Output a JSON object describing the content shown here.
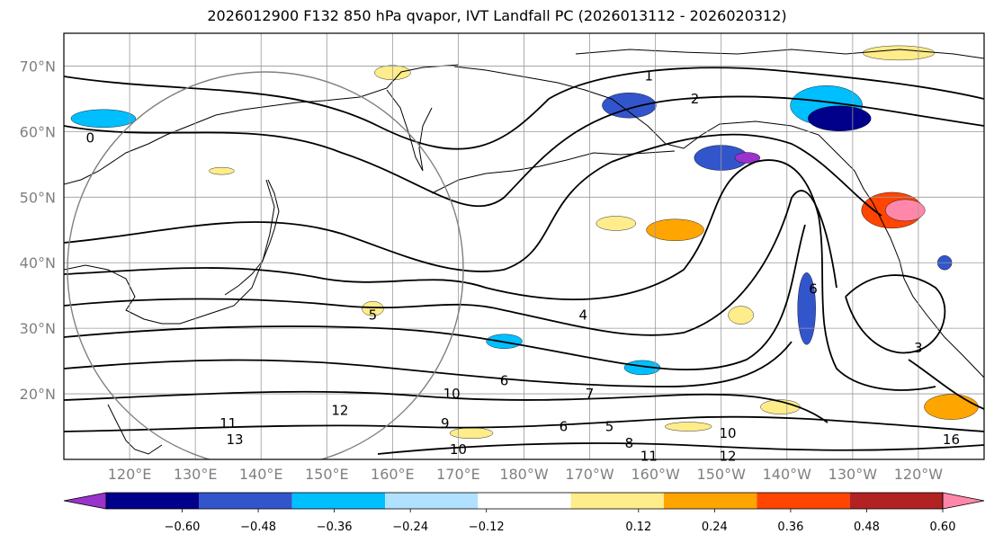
{
  "title": "2026012900 F132 850 hPa qvapor, IVT Landfall PC (2026013112 - 2026020312)",
  "map": {
    "lon_range": [
      110,
      250
    ],
    "lat_range": [
      10,
      75
    ],
    "lat_ticks": [
      {
        "value": 20,
        "label": "20°N"
      },
      {
        "value": 30,
        "label": "30°N"
      },
      {
        "value": 40,
        "label": "40°N"
      },
      {
        "value": 50,
        "label": "50°N"
      },
      {
        "value": 60,
        "label": "60°N"
      },
      {
        "value": 70,
        "label": "70°N"
      }
    ],
    "lon_ticks": [
      {
        "value": 120,
        "label": "120°E"
      },
      {
        "value": 130,
        "label": "130°E"
      },
      {
        "value": 140,
        "label": "140°E"
      },
      {
        "value": 150,
        "label": "150°E"
      },
      {
        "value": 160,
        "label": "160°E"
      },
      {
        "value": 170,
        "label": "170°E"
      },
      {
        "value": 180,
        "label": "180°W"
      },
      {
        "value": 190,
        "label": "170°W"
      },
      {
        "value": 200,
        "label": "160°W"
      },
      {
        "value": 210,
        "label": "150°W"
      },
      {
        "value": 220,
        "label": "140°W"
      },
      {
        "value": 230,
        "label": "130°W"
      },
      {
        "value": 240,
        "label": "120°W"
      }
    ],
    "contour_labels": [
      {
        "text": "1",
        "lon": 199,
        "lat": 68.5
      },
      {
        "text": "2",
        "lon": 206,
        "lat": 65
      },
      {
        "text": "0",
        "lon": 114,
        "lat": 59
      },
      {
        "text": "5",
        "lon": 157,
        "lat": 32
      },
      {
        "text": "4",
        "lon": 189,
        "lat": 32
      },
      {
        "text": "6",
        "lon": 224,
        "lat": 36
      },
      {
        "text": "3",
        "lon": 240,
        "lat": 27
      },
      {
        "text": "6",
        "lon": 177,
        "lat": 22
      },
      {
        "text": "10",
        "lon": 169,
        "lat": 20
      },
      {
        "text": "7",
        "lon": 190,
        "lat": 20
      },
      {
        "text": "9",
        "lon": 168,
        "lat": 15.5
      },
      {
        "text": "6",
        "lon": 186,
        "lat": 15
      },
      {
        "text": "5",
        "lon": 193,
        "lat": 15
      },
      {
        "text": "8",
        "lon": 196,
        "lat": 12.5
      },
      {
        "text": "10",
        "lon": 170,
        "lat": 11.5
      },
      {
        "text": "11",
        "lon": 135,
        "lat": 15.5
      },
      {
        "text": "12",
        "lon": 152,
        "lat": 17.5
      },
      {
        "text": "13",
        "lon": 136,
        "lat": 13
      },
      {
        "text": "10",
        "lon": 211,
        "lat": 14
      },
      {
        "text": "12",
        "lon": 211,
        "lat": 10.5
      },
      {
        "text": "11",
        "lon": 199,
        "lat": 10.5
      },
      {
        "text": "16",
        "lon": 245,
        "lat": 13
      }
    ],
    "shading": [
      {
        "type": "neg",
        "level": 3,
        "lon": 196,
        "lat": 64,
        "rx": 30,
        "ry": 14
      },
      {
        "type": "neg",
        "level": 2,
        "lon": 226,
        "lat": 64,
        "rx": 40,
        "ry": 22
      },
      {
        "type": "neg",
        "level": 4,
        "lon": 228,
        "lat": 62,
        "rx": 35,
        "ry": 14
      },
      {
        "type": "neg",
        "level": 3,
        "lon": 210,
        "lat": 56,
        "rx": 30,
        "ry": 14
      },
      {
        "type": "neg",
        "level": 5,
        "lon": 214,
        "lat": 56,
        "rx": 14,
        "ry": 6
      },
      {
        "type": "neg",
        "level": 2,
        "lon": 116,
        "lat": 62,
        "rx": 36,
        "ry": 10
      },
      {
        "type": "neg",
        "level": 3,
        "lon": 223,
        "lat": 33,
        "rx": 10,
        "ry": 40
      },
      {
        "type": "neg",
        "level": 3,
        "lon": 244,
        "lat": 40,
        "rx": 8,
        "ry": 8
      },
      {
        "type": "neg",
        "level": 2,
        "lon": 177,
        "lat": 28,
        "rx": 20,
        "ry": 8
      },
      {
        "type": "neg",
        "level": 2,
        "lon": 198,
        "lat": 24,
        "rx": 20,
        "ry": 8
      },
      {
        "type": "pos",
        "level": 3,
        "lon": 236,
        "lat": 48,
        "rx": 34,
        "ry": 20
      },
      {
        "type": "pos",
        "level": 5,
        "lon": 238,
        "lat": 48,
        "rx": 22,
        "ry": 12
      },
      {
        "type": "pos",
        "level": 1,
        "lon": 194,
        "lat": 46,
        "rx": 22,
        "ry": 8
      },
      {
        "type": "pos",
        "level": 2,
        "lon": 203,
        "lat": 45,
        "rx": 32,
        "ry": 12
      },
      {
        "type": "pos",
        "level": 1,
        "lon": 219,
        "lat": 18,
        "rx": 22,
        "ry": 8
      },
      {
        "type": "pos",
        "level": 2,
        "lon": 245,
        "lat": 18,
        "rx": 30,
        "ry": 14
      },
      {
        "type": "pos",
        "level": 1,
        "lon": 160,
        "lat": 69,
        "rx": 20,
        "ry": 8
      },
      {
        "type": "pos",
        "level": 1,
        "lon": 237,
        "lat": 72,
        "rx": 40,
        "ry": 8
      },
      {
        "type": "pos",
        "level": 1,
        "lon": 172,
        "lat": 14,
        "rx": 24,
        "ry": 6
      },
      {
        "type": "pos",
        "level": 1,
        "lon": 205,
        "lat": 15,
        "rx": 26,
        "ry": 5
      },
      {
        "type": "pos",
        "level": 1,
        "lon": 134,
        "lat": 54,
        "rx": 14,
        "ry": 4
      },
      {
        "type": "pos",
        "level": 1,
        "lon": 157,
        "lat": 33,
        "rx": 12,
        "ry": 8
      },
      {
        "type": "pos",
        "level": 1,
        "lon": 213,
        "lat": 32,
        "rx": 14,
        "ry": 10
      }
    ]
  },
  "colorbar": {
    "ticks": [
      "−0.60",
      "−0.48",
      "−0.36",
      "−0.24",
      "−0.12",
      "0.12",
      "0.24",
      "0.36",
      "0.48",
      "0.60"
    ],
    "colors": [
      "#9933cc",
      "#00008b",
      "#3355cc",
      "#00bfff",
      "#b0e2ff",
      "#ffffff",
      "#ffec8b",
      "#ffa500",
      "#ff4500",
      "#b22222",
      "#ff88aa"
    ],
    "coastline_color": "#000000",
    "contour_color": "#000000",
    "gridline_color": "#999999",
    "circle_color": "#808080"
  }
}
